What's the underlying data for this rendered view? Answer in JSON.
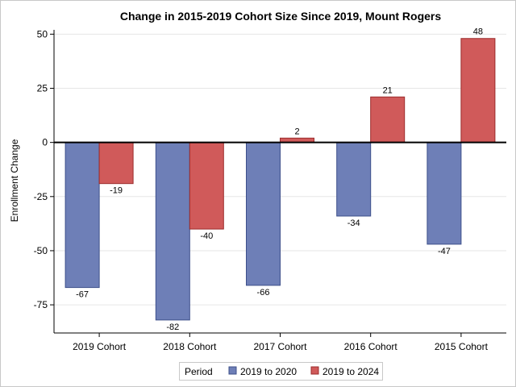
{
  "chart_data": {
    "type": "bar",
    "title": "Change in 2015-2019 Cohort Size Since 2019, Mount Rogers",
    "xlabel": "",
    "ylabel": "Enrollment Change",
    "categories": [
      "2019 Cohort",
      "2018 Cohort",
      "2017 Cohort",
      "2016 Cohort",
      "2015 Cohort"
    ],
    "series": [
      {
        "name": "2019 to 2020",
        "values": [
          -67,
          -82,
          -66,
          -34,
          -47
        ],
        "color": "#6e7fb7",
        "border": "#3d4f8a"
      },
      {
        "name": "2019 to 2024",
        "values": [
          -19,
          -40,
          2,
          21,
          48
        ],
        "color": "#d05a5a",
        "border": "#9b2b2b"
      }
    ],
    "ylim": [
      -88,
      52
    ],
    "yticks": [
      50,
      25,
      0,
      -25,
      -50,
      -75
    ],
    "ytick_labels": [
      "50",
      "25",
      "0",
      "-25",
      "-50",
      "-75"
    ],
    "grid": true,
    "legend": {
      "title": "Period",
      "position": "bottom-center"
    }
  }
}
